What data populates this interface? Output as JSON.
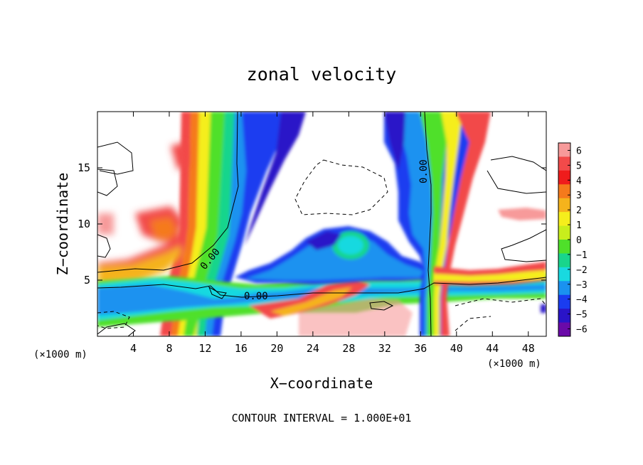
{
  "chart_data": {
    "type": "heatmap",
    "title": "zonal velocity",
    "xlabel": "X−coordinate",
    "ylabel": "Z−coordinate",
    "x_unit_left": "(×1000 m)",
    "x_unit_right": "(×1000 m)",
    "footer": "CONTOUR INTERVAL = 1.000E+01",
    "xlim": [
      0,
      50
    ],
    "ylim": [
      0,
      20
    ],
    "xticks": [
      4,
      8,
      12,
      16,
      20,
      24,
      28,
      32,
      36,
      40,
      44,
      48
    ],
    "yticks": [
      5,
      10,
      15
    ],
    "contour_label": "0.00",
    "colorbar": {
      "ticks": [
        6,
        5,
        4,
        3,
        2,
        1,
        0,
        -1,
        -2,
        -3,
        -4,
        -5,
        -6
      ],
      "tick_labels": [
        "6",
        "5",
        "4",
        "3",
        "2",
        "1",
        "0",
        "−1",
        "−2",
        "−3",
        "−4",
        "−5",
        "−6"
      ],
      "colors": [
        "#f79a9a",
        "#f24a4a",
        "#ef1c1c",
        "#f57a1c",
        "#f5b31c",
        "#f5ee1c",
        "#c8ee1c",
        "#4fe02a",
        "#19d58c",
        "#19d9e0",
        "#1a92f0",
        "#1a3cf0",
        "#2a14c8",
        "#6a0aa8"
      ]
    }
  }
}
